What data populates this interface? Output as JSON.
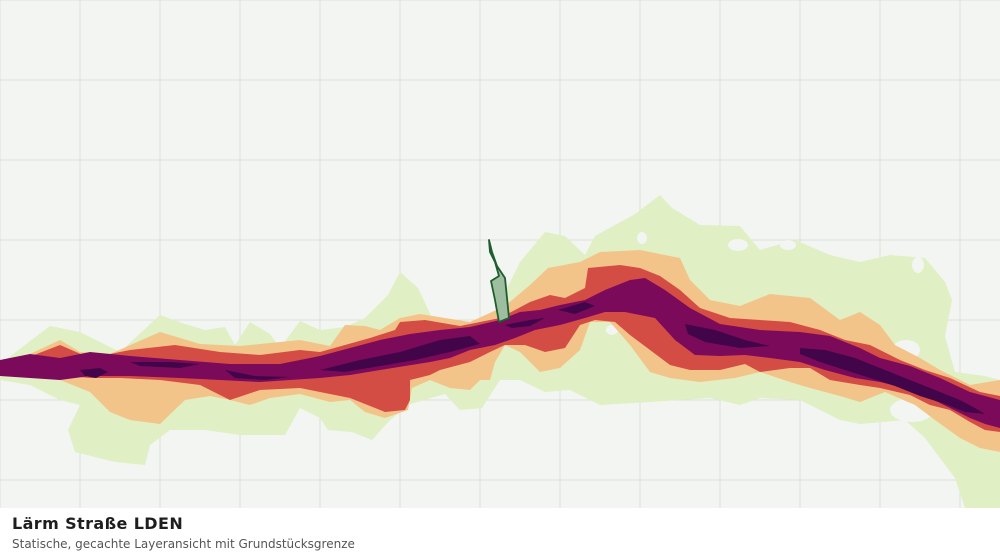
{
  "map": {
    "title": "Lärm Straße LDEN",
    "subtitle": "Statische, gecachte Layeransicht mit Grundstücksgrenze",
    "colors": {
      "background": "#f3f5f2",
      "grid": "#dcdedb",
      "noise_band_1": "#e0efc4",
      "noise_band_2": "#f3c489",
      "noise_band_3": "#d44d45",
      "noise_band_4": "#7c0a5a",
      "noise_band_5": "#43054a",
      "parcel_fill": "#9dbf9f",
      "parcel_stroke": "#1f5c2e"
    }
  }
}
